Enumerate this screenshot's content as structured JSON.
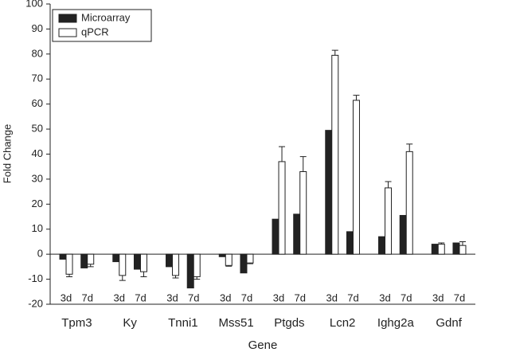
{
  "chart_data": {
    "type": "bar",
    "y_label": "Fold Change",
    "x_label": "Gene",
    "groups": [
      "Tpm3",
      "Ky",
      "Tnni1",
      "Mss51",
      "Ptgds",
      "Lcn2",
      "Ighg2a",
      "Gdnf"
    ],
    "categories": [
      "3d",
      "7d",
      "3d",
      "7d",
      "3d",
      "7d",
      "3d",
      "7d",
      "3d",
      "7d",
      "3d",
      "7d",
      "3d",
      "7d",
      "3d",
      "7d"
    ],
    "series": [
      {
        "name": "Microarray",
        "color": "#222222",
        "values": [
          -2,
          -5.5,
          -3,
          -6,
          -5,
          -13.5,
          -1,
          -7.5,
          14,
          16,
          49.5,
          9,
          7,
          15.5,
          4,
          4.5
        ]
      },
      {
        "name": "qPCR",
        "color": "#ffffff",
        "values": [
          -8,
          -4,
          -8.5,
          -7,
          -8.5,
          -9,
          -4.5,
          -3.5,
          37,
          33,
          79.5,
          61.5,
          26.5,
          41,
          4,
          3.5
        ],
        "errors": [
          1,
          1,
          2,
          2,
          1,
          1,
          0.3,
          0.3,
          6,
          6,
          2,
          2,
          2.5,
          3,
          0.5,
          1.5
        ]
      }
    ],
    "ylim": [
      -20,
      100
    ],
    "yticks": [
      -20,
      -10,
      0,
      10,
      20,
      30,
      40,
      50,
      60,
      70,
      80,
      90,
      100
    ],
    "legend": "upper left"
  }
}
